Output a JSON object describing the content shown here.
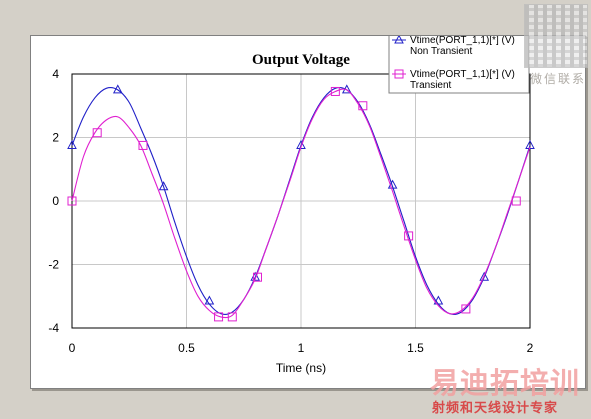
{
  "chart_data": {
    "type": "line",
    "title": "Output Voltage",
    "xlabel": "Time (ns)",
    "ylabel": "",
    "xlim": [
      0,
      2
    ],
    "ylim": [
      -4,
      4
    ],
    "xticks": [
      "0",
      "0.5",
      "1",
      "1.5",
      "2"
    ],
    "yticks": [
      "4",
      "2",
      "0",
      "-2",
      "-4"
    ],
    "grid": true,
    "legend_position": "top-right",
    "series": [
      {
        "name": "Vtime(PORT_1,1)[*] (V)",
        "subname": "Non Transient",
        "color": "#2020c8",
        "marker": "triangle",
        "x": [
          0,
          0.05,
          0.1,
          0.15,
          0.2,
          0.25,
          0.3,
          0.35,
          0.4,
          0.45,
          0.5,
          0.55,
          0.6,
          0.65,
          0.7,
          0.75,
          0.8,
          0.85,
          0.9,
          0.95,
          1.0,
          1.05,
          1.1,
          1.15,
          1.2,
          1.25,
          1.3,
          1.35,
          1.4,
          1.45,
          1.5,
          1.55,
          1.6,
          1.65,
          1.7,
          1.75,
          1.8,
          1.85,
          1.9,
          1.95,
          2.0
        ],
        "values": [
          1.75,
          2.65,
          3.25,
          3.55,
          3.5,
          3.1,
          2.3,
          1.45,
          0.45,
          -0.7,
          -1.75,
          -2.65,
          -3.25,
          -3.55,
          -3.5,
          -3.1,
          -2.4,
          -1.45,
          -0.45,
          0.65,
          1.75,
          2.65,
          3.25,
          3.55,
          3.5,
          3.1,
          2.4,
          1.45,
          0.45,
          -0.65,
          -1.75,
          -2.65,
          -3.25,
          -3.55,
          -3.5,
          -3.1,
          -2.4,
          -1.45,
          -0.45,
          0.65,
          1.75
        ],
        "markers_x": [
          0,
          0.2,
          0.4,
          0.6,
          0.8,
          1.0,
          1.2,
          1.4,
          1.6,
          1.8,
          2.0
        ],
        "markers_y": [
          1.75,
          3.5,
          0.45,
          -3.15,
          -2.4,
          1.75,
          3.5,
          0.5,
          -3.15,
          -2.4,
          1.75
        ]
      },
      {
        "name": "Vtime(PORT_1,1)[*] (V)",
        "subname": "Transient",
        "color": "#e020d0",
        "marker": "square",
        "x": [
          0,
          0.05,
          0.1,
          0.15,
          0.2,
          0.25,
          0.3,
          0.35,
          0.4,
          0.45,
          0.5,
          0.55,
          0.6,
          0.65,
          0.7,
          0.75,
          0.8,
          0.85,
          0.9,
          0.95,
          1.0,
          1.05,
          1.1,
          1.15,
          1.2,
          1.25,
          1.3,
          1.35,
          1.4,
          1.45,
          1.5,
          1.55,
          1.6,
          1.65,
          1.7,
          1.75,
          1.8,
          1.85,
          1.9,
          1.95,
          2.0
        ],
        "values": [
          0.0,
          1.4,
          2.15,
          2.55,
          2.65,
          2.3,
          1.75,
          0.85,
          -0.1,
          -1.2,
          -2.2,
          -3.0,
          -3.45,
          -3.65,
          -3.6,
          -3.1,
          -2.45,
          -1.45,
          -0.45,
          0.6,
          1.7,
          2.6,
          3.2,
          3.45,
          3.5,
          3.05,
          2.35,
          1.35,
          0.3,
          -0.8,
          -1.85,
          -2.75,
          -3.3,
          -3.55,
          -3.45,
          -3.05,
          -2.35,
          -1.45,
          -0.4,
          0.65,
          1.7
        ],
        "markers_x": [
          0,
          0.11,
          0.31,
          0.64,
          0.7,
          0.81,
          1.15,
          1.27,
          1.47,
          1.72,
          1.94
        ],
        "markers_y": [
          0.0,
          2.15,
          1.75,
          -3.65,
          -3.65,
          -2.4,
          3.45,
          3.0,
          -1.1,
          -3.4,
          0.0
        ]
      }
    ]
  },
  "watermark": {
    "qr_caption": "微信联系",
    "brand": "易迪拓培训",
    "slogan": "射频和天线设计专家"
  }
}
